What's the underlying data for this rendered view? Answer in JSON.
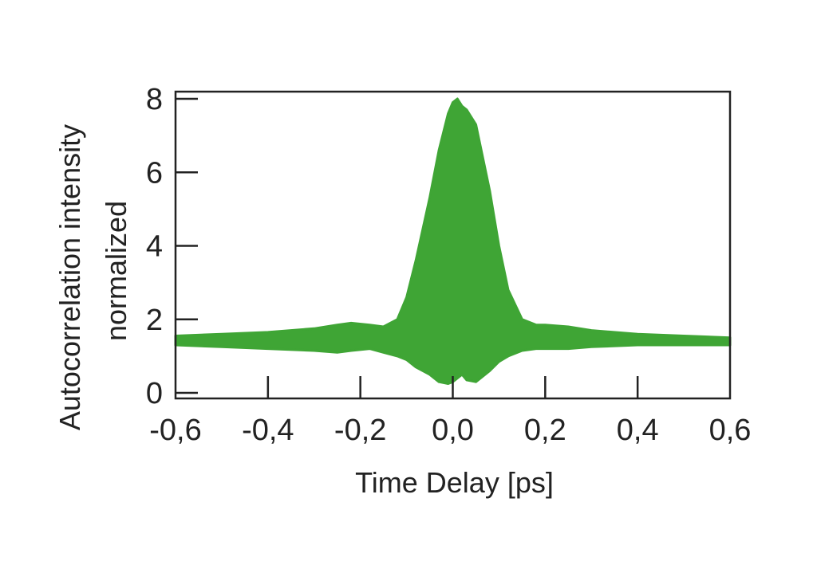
{
  "chart_data": {
    "type": "area",
    "title": "",
    "xlabel": "Time Delay [ps]",
    "ylabel_line1": "Autocorrelation intensity",
    "ylabel_line2": "normalized",
    "xlim": [
      -0.6,
      0.6
    ],
    "ylim": [
      0,
      8
    ],
    "x_ticks": [
      -0.6,
      -0.4,
      -0.2,
      0.0,
      0.2,
      0.4,
      0.6
    ],
    "x_tick_labels": [
      "-0,6",
      "-0,4",
      "-0,2",
      "0,0",
      "0,2",
      "0,4",
      "0,6"
    ],
    "y_ticks": [
      0,
      2,
      4,
      6,
      8
    ],
    "y_tick_labels": [
      "0",
      "2",
      "4",
      "6",
      "8"
    ],
    "grid": false,
    "series": [
      {
        "color": "#3fa535",
        "x": [
          -0.6,
          -0.5,
          -0.4,
          -0.3,
          -0.25,
          -0.22,
          -0.18,
          -0.15,
          -0.12,
          -0.1,
          -0.08,
          -0.05,
          -0.03,
          -0.01,
          0.0,
          0.01,
          0.02,
          0.03,
          0.05,
          0.08,
          0.1,
          0.12,
          0.15,
          0.18,
          0.2,
          0.25,
          0.3,
          0.4,
          0.5,
          0.6
        ],
        "upper": [
          1.55,
          1.6,
          1.65,
          1.75,
          1.85,
          1.9,
          1.85,
          1.8,
          2.0,
          2.6,
          3.6,
          5.3,
          6.6,
          7.6,
          7.9,
          8.0,
          7.8,
          7.7,
          7.3,
          5.5,
          4.0,
          2.8,
          2.0,
          1.85,
          1.85,
          1.8,
          1.7,
          1.6,
          1.55,
          1.5
        ],
        "lower": [
          1.3,
          1.25,
          1.2,
          1.15,
          1.1,
          1.15,
          1.2,
          1.1,
          1.0,
          0.9,
          0.7,
          0.5,
          0.3,
          0.25,
          0.3,
          0.4,
          0.5,
          0.35,
          0.3,
          0.6,
          0.85,
          1.0,
          1.15,
          1.2,
          1.2,
          1.2,
          1.25,
          1.3,
          1.3,
          1.3
        ]
      }
    ]
  }
}
